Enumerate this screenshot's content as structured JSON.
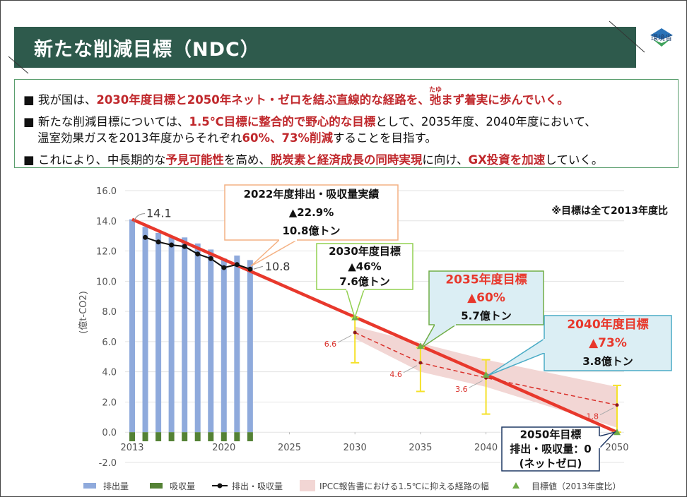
{
  "header": {
    "title": "新たな削減目標（NDC）",
    "logo": "環境省"
  },
  "bullets": [
    {
      "lines": [
        [
          {
            "text": "我が国は、"
          },
          {
            "text": "2030年度目標と2050年ネット・ゼロを結ぶ直線的な経路を、",
            "em": true
          },
          {
            "text": "弛",
            "ruby": "たゆ",
            "em": true
          },
          {
            "text": "まず着実に歩んでいく。",
            "em": true
          }
        ]
      ]
    },
    {
      "lines": [
        [
          {
            "text": "新たな削減目標については、"
          },
          {
            "text": "1.5℃目標に整合的で野心的な目標",
            "em": true
          },
          {
            "text": "として、2035年度、2040年度において、"
          }
        ],
        [
          {
            "text": "温室効果ガスを2013年度からそれぞれ"
          },
          {
            "text": "60%、73%削減",
            "em": true
          },
          {
            "text": "することを目指す。"
          }
        ]
      ]
    },
    {
      "lines": [
        [
          {
            "text": "これにより、中長期的な"
          },
          {
            "text": "予見可能性",
            "em": true
          },
          {
            "text": "を高め、"
          },
          {
            "text": "脱炭素と経済成長の同時実現",
            "em": true
          },
          {
            "text": "に向け、"
          },
          {
            "text": "GX投資を加速",
            "em": true
          },
          {
            "text": "していく。"
          }
        ]
      ]
    }
  ],
  "chart_data": {
    "type": "combo",
    "y_label": "(億t-CO2)",
    "note": "※目標は全て2013年度比",
    "xlim": [
      2013,
      2050
    ],
    "xticks": [
      2013,
      2020,
      2025,
      2030,
      2035,
      2040,
      2050
    ],
    "ylim": [
      -2,
      16
    ],
    "yticks": [
      {
        "value": -2,
        "label": "-2.0"
      },
      {
        "value": 0,
        "label": "0.0"
      },
      {
        "value": 2,
        "label": "2.0"
      },
      {
        "value": 4,
        "label": "4.0"
      },
      {
        "value": 6,
        "label": "6.0"
      },
      {
        "value": 8,
        "label": "8.0"
      },
      {
        "value": 10,
        "label": "10.0"
      },
      {
        "value": 12,
        "label": "12.0"
      },
      {
        "value": 14,
        "label": "14.0"
      },
      {
        "value": 16,
        "label": "16.0"
      }
    ],
    "grid": true,
    "x": [
      2013,
      2014,
      2015,
      2016,
      2017,
      2018,
      2019,
      2020,
      2021,
      2022
    ],
    "series": [
      {
        "name": "排出量",
        "type": "bar",
        "color": "#8faadc",
        "values": [
          14.1,
          13.6,
          13.2,
          13.0,
          12.9,
          12.5,
          12.1,
          11.5,
          11.7,
          11.4
        ]
      },
      {
        "name": "吸収量",
        "type": "bar",
        "color": "#548235",
        "values": [
          -0.6,
          -0.6,
          -0.6,
          -0.6,
          -0.6,
          -0.6,
          -0.6,
          -0.6,
          -0.6,
          -0.6
        ]
      },
      {
        "name": "排出・吸収量",
        "type": "line",
        "color": "#111111",
        "values": [
          null,
          12.9,
          12.6,
          12.4,
          12.3,
          11.8,
          11.5,
          10.9,
          11.1,
          10.8
        ]
      }
    ],
    "pathway": {
      "color": "#e8382c",
      "x": [
        2013,
        2050
      ],
      "values": [
        14.1,
        0
      ]
    },
    "ipcc": {
      "name": "IPCC報告書における1.5℃に抑える経路の幅",
      "color": "#f2d6d4",
      "line_color": "#d9302a",
      "bar_color": "#f5e12a",
      "x": [
        2030,
        2035,
        2040,
        2050
      ],
      "median": [
        6.6,
        4.6,
        3.6,
        1.8
      ],
      "lower": [
        6.2,
        4.0,
        3.0,
        0.3
      ],
      "upper": [
        7.0,
        5.9,
        4.8,
        3.0
      ],
      "range_low": [
        4.6,
        2.7,
        1.2,
        0.0
      ],
      "range_high": [
        7.6,
        5.6,
        4.8,
        3.1
      ]
    },
    "target": {
      "name": "目標値（2013年度比）",
      "color": "#70ad47",
      "x": [
        2030,
        2035,
        2040,
        2050
      ],
      "values": [
        7.6,
        5.7,
        3.8,
        0
      ]
    },
    "callouts": [
      {
        "lines": [
          "2022年度排出・吸収量実績",
          "▲22.9%",
          "10.8億トン"
        ]
      },
      {
        "lines": [
          "2030年度目標",
          "▲46%",
          "7.6億トン"
        ]
      },
      {
        "lines": [
          "2035年度目標",
          "▲60%",
          "5.7億トン"
        ]
      },
      {
        "lines": [
          "2040年度目標",
          "▲73%",
          "3.8億トン"
        ]
      },
      {
        "lines": [
          "2050年目標",
          "排出・吸収量：0",
          "(ネットゼロ)"
        ]
      }
    ]
  }
}
